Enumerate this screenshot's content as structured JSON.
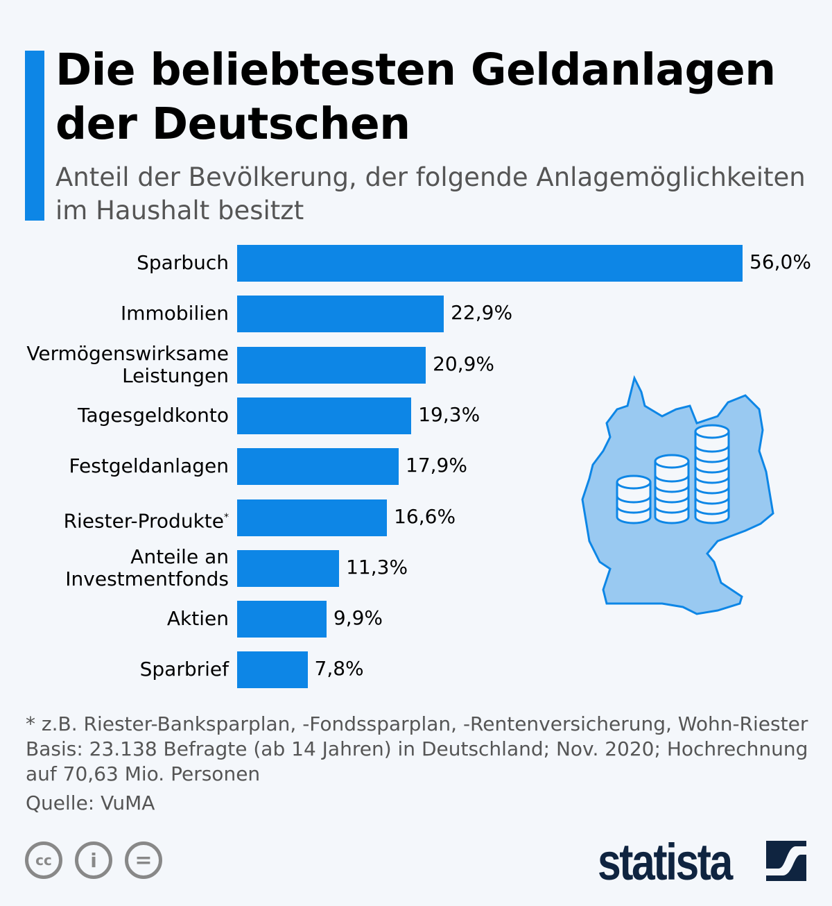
{
  "title": "Die beliebtesten Geldanlagen der Deutschen",
  "subtitle": "Anteil der Bevölkerung, der folgende Anlagemöglichkeiten im Haushalt besitzt",
  "chart_data": {
    "type": "bar",
    "orientation": "horizontal",
    "categories": [
      "Sparbuch",
      "Immobilien",
      "Vermögenswirksame Leistungen",
      "Tagesgeldkonto",
      "Festgeldanlagen",
      "Riester-Produkte",
      "Anteile an Investmentfonds",
      "Aktien",
      "Sparbrief"
    ],
    "category_lines": [
      [
        "Sparbuch"
      ],
      [
        "Immobilien"
      ],
      [
        "Vermögenswirksame",
        "Leistungen"
      ],
      [
        "Tagesgeldkonto"
      ],
      [
        "Festgeldanlagen"
      ],
      [
        "Riester-Produkte"
      ],
      [
        "Anteile an",
        "Investmentfonds"
      ],
      [
        "Aktien"
      ],
      [
        "Sparbrief"
      ]
    ],
    "values": [
      56.0,
      22.9,
      20.9,
      19.3,
      17.9,
      16.6,
      11.3,
      9.9,
      7.8
    ],
    "value_labels": [
      "56,0%",
      "22,9%",
      "20,9%",
      "19,3%",
      "17,9%",
      "16,6%",
      "11,3%",
      "9,9%",
      "7,8%"
    ],
    "asterisk_index": 5,
    "asterisk": "*",
    "unit": "%",
    "xlim": [
      0,
      56
    ],
    "color": "#0d86e6"
  },
  "footnote": "* z.B. Riester-Banksparplan, -Fondssparplan, -Rentenversicherung, Wohn-Riester",
  "basis": "Basis: 23.138 Befragte (ab 14 Jahren) in Deutschland; Nov. 2020; Hochrechnung auf 70,63 Mio. Personen",
  "source": "Quelle: VuMA",
  "license_icons": {
    "cc": "cc",
    "by": "i",
    "nd": "="
  },
  "brand": "statista",
  "colors": {
    "accent": "#0d86e6",
    "map": "#99c9f1",
    "brand": "#0f2440"
  }
}
